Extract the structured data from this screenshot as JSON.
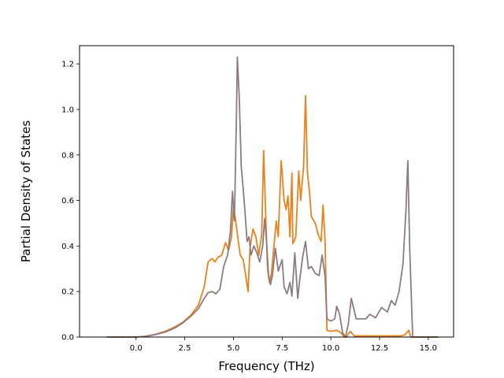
{
  "chart_data": {
    "type": "line",
    "title": "",
    "xlabel": "Frequency (THz)",
    "ylabel": "Partial Density of States",
    "xlim": [
      -2.9,
      16.3
    ],
    "ylim": [
      0.0,
      1.28
    ],
    "xticks": [
      0.0,
      2.5,
      5.0,
      7.5,
      10.0,
      12.5,
      15.0
    ],
    "xtick_labels": [
      "0.0",
      "2.5",
      "5.0",
      "7.5",
      "10.0",
      "12.5",
      "15.0"
    ],
    "yticks": [
      0.0,
      0.2,
      0.4,
      0.6,
      0.8,
      1.0,
      1.2
    ],
    "ytick_labels": [
      "0.0",
      "0.2",
      "0.4",
      "0.6",
      "0.8",
      "1.0",
      "1.2"
    ],
    "grid": false,
    "legend": "none",
    "series": [
      {
        "color": "#e8821e",
        "points": [
          [
            -1.5,
            0.0
          ],
          [
            0.0,
            0.0
          ],
          [
            0.5,
            0.004
          ],
          [
            1.0,
            0.012
          ],
          [
            1.5,
            0.025
          ],
          [
            2.0,
            0.045
          ],
          [
            2.4,
            0.065
          ],
          [
            2.8,
            0.095
          ],
          [
            3.2,
            0.14
          ],
          [
            3.5,
            0.22
          ],
          [
            3.7,
            0.33
          ],
          [
            3.9,
            0.345
          ],
          [
            4.05,
            0.33
          ],
          [
            4.2,
            0.35
          ],
          [
            4.4,
            0.36
          ],
          [
            4.6,
            0.415
          ],
          [
            4.75,
            0.38
          ],
          [
            4.9,
            0.44
          ],
          [
            5.0,
            0.57
          ],
          [
            5.1,
            0.52
          ],
          [
            5.25,
            0.42
          ],
          [
            5.35,
            0.36
          ],
          [
            5.5,
            0.34
          ],
          [
            5.65,
            0.26
          ],
          [
            5.75,
            0.2
          ],
          [
            5.85,
            0.39
          ],
          [
            6.0,
            0.475
          ],
          [
            6.15,
            0.44
          ],
          [
            6.3,
            0.36
          ],
          [
            6.45,
            0.45
          ],
          [
            6.55,
            0.82
          ],
          [
            6.65,
            0.55
          ],
          [
            6.75,
            0.3
          ],
          [
            6.85,
            0.24
          ],
          [
            6.95,
            0.28
          ],
          [
            7.1,
            0.42
          ],
          [
            7.2,
            0.51
          ],
          [
            7.3,
            0.44
          ],
          [
            7.45,
            0.775
          ],
          [
            7.6,
            0.6
          ],
          [
            7.7,
            0.56
          ],
          [
            7.8,
            0.62
          ],
          [
            7.9,
            0.44
          ],
          [
            8.0,
            0.72
          ],
          [
            8.05,
            0.41
          ],
          [
            8.2,
            0.44
          ],
          [
            8.35,
            0.73
          ],
          [
            8.45,
            0.6
          ],
          [
            8.6,
            0.75
          ],
          [
            8.7,
            1.06
          ],
          [
            8.8,
            0.72
          ],
          [
            8.9,
            0.64
          ],
          [
            9.0,
            0.53
          ],
          [
            9.2,
            0.5
          ],
          [
            9.35,
            0.45
          ],
          [
            9.5,
            0.42
          ],
          [
            9.6,
            0.58
          ],
          [
            9.7,
            0.43
          ],
          [
            9.8,
            0.03
          ],
          [
            10.0,
            0.025
          ],
          [
            10.3,
            0.03
          ],
          [
            10.5,
            0.02
          ],
          [
            10.7,
            0.0
          ],
          [
            10.8,
            0.0
          ],
          [
            11.0,
            0.025
          ],
          [
            11.2,
            0.005
          ],
          [
            12.0,
            0.005
          ],
          [
            13.0,
            0.005
          ],
          [
            13.6,
            0.005
          ],
          [
            13.8,
            0.01
          ],
          [
            14.0,
            0.03
          ],
          [
            14.1,
            0.0
          ],
          [
            15.5,
            0.0
          ]
        ]
      },
      {
        "color": "#8c7b80",
        "points": [
          [
            -1.5,
            0.0
          ],
          [
            0.0,
            0.0
          ],
          [
            0.5,
            0.003
          ],
          [
            1.0,
            0.011
          ],
          [
            1.5,
            0.022
          ],
          [
            2.0,
            0.04
          ],
          [
            2.4,
            0.062
          ],
          [
            2.8,
            0.09
          ],
          [
            3.2,
            0.125
          ],
          [
            3.5,
            0.17
          ],
          [
            3.7,
            0.195
          ],
          [
            3.9,
            0.2
          ],
          [
            4.1,
            0.19
          ],
          [
            4.3,
            0.21
          ],
          [
            4.5,
            0.31
          ],
          [
            4.7,
            0.36
          ],
          [
            4.85,
            0.47
          ],
          [
            4.95,
            0.64
          ],
          [
            5.05,
            0.51
          ],
          [
            5.15,
            0.95
          ],
          [
            5.2,
            1.23
          ],
          [
            5.3,
            1.05
          ],
          [
            5.4,
            0.75
          ],
          [
            5.55,
            0.6
          ],
          [
            5.7,
            0.42
          ],
          [
            5.8,
            0.44
          ],
          [
            5.9,
            0.36
          ],
          [
            6.05,
            0.4
          ],
          [
            6.2,
            0.37
          ],
          [
            6.35,
            0.33
          ],
          [
            6.5,
            0.4
          ],
          [
            6.6,
            0.52
          ],
          [
            6.7,
            0.42
          ],
          [
            6.8,
            0.27
          ],
          [
            6.9,
            0.23
          ],
          [
            7.0,
            0.27
          ],
          [
            7.15,
            0.39
          ],
          [
            7.3,
            0.29
          ],
          [
            7.5,
            0.34
          ],
          [
            7.6,
            0.22
          ],
          [
            7.75,
            0.19
          ],
          [
            7.9,
            0.24
          ],
          [
            8.0,
            0.18
          ],
          [
            8.15,
            0.37
          ],
          [
            8.3,
            0.17
          ],
          [
            8.4,
            0.25
          ],
          [
            8.55,
            0.35
          ],
          [
            8.7,
            0.42
          ],
          [
            8.85,
            0.3
          ],
          [
            9.0,
            0.31
          ],
          [
            9.2,
            0.28
          ],
          [
            9.4,
            0.27
          ],
          [
            9.55,
            0.36
          ],
          [
            9.7,
            0.27
          ],
          [
            9.8,
            0.08
          ],
          [
            10.0,
            0.07
          ],
          [
            10.2,
            0.08
          ],
          [
            10.3,
            0.135
          ],
          [
            10.45,
            0.1
          ],
          [
            10.6,
            0.02
          ],
          [
            10.75,
            0.0
          ],
          [
            10.9,
            0.06
          ],
          [
            11.05,
            0.17
          ],
          [
            11.3,
            0.08
          ],
          [
            11.8,
            0.08
          ],
          [
            12.0,
            0.1
          ],
          [
            12.3,
            0.085
          ],
          [
            12.6,
            0.13
          ],
          [
            12.9,
            0.11
          ],
          [
            13.1,
            0.16
          ],
          [
            13.3,
            0.14
          ],
          [
            13.5,
            0.2
          ],
          [
            13.7,
            0.32
          ],
          [
            13.85,
            0.55
          ],
          [
            13.95,
            0.775
          ],
          [
            14.05,
            0.38
          ],
          [
            14.2,
            0.0
          ],
          [
            15.5,
            0.0
          ]
        ]
      }
    ]
  }
}
